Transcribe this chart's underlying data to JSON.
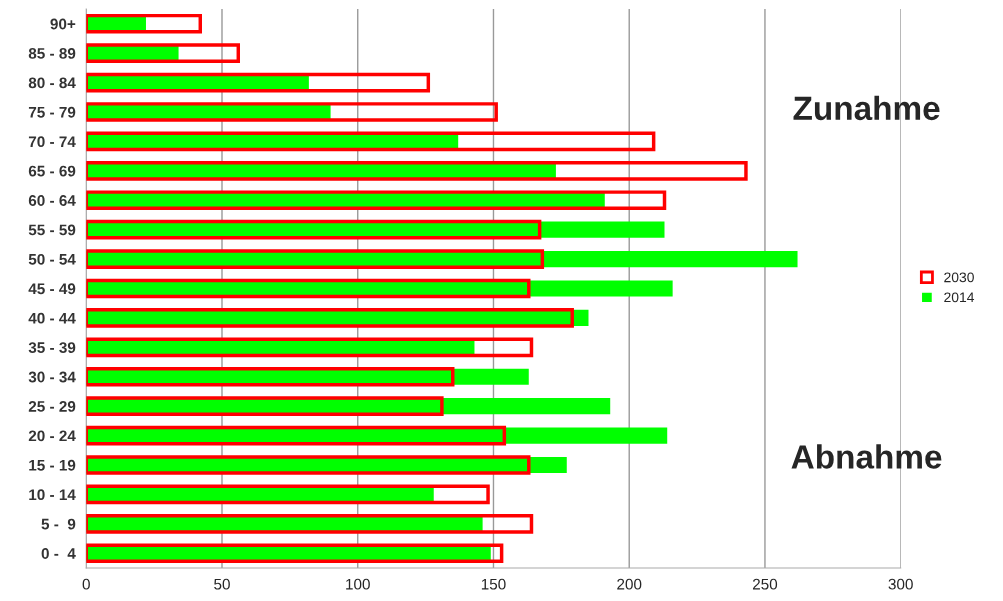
{
  "chart_data": {
    "type": "bar",
    "orientation": "horizontal",
    "categories": [
      "90+",
      "85 - 89",
      "80 - 84",
      "75 - 79",
      "70 - 74",
      "65 - 69",
      "60 - 64",
      "55 - 59",
      "50 - 54",
      "45 - 49",
      "40 - 44",
      "35 - 39",
      "30 - 34",
      "25 - 29",
      "20 - 24",
      "15 - 19",
      "10 - 14",
      "5 -  9",
      "0 -  4"
    ],
    "series": [
      {
        "name": "2030",
        "color": "#ff0000",
        "values": [
          42,
          56,
          126,
          151,
          209,
          243,
          213,
          167,
          168,
          163,
          179,
          164,
          135,
          131,
          154,
          163,
          148,
          164,
          153
        ]
      },
      {
        "name": "2014",
        "color": "#00ff00",
        "values": [
          22,
          34,
          82,
          90,
          137,
          173,
          191,
          213,
          262,
          216,
          185,
          143,
          163,
          193,
          214,
          177,
          128,
          146,
          149
        ]
      }
    ],
    "xlim": [
      0,
      300
    ],
    "xticks": [
      0,
      50,
      100,
      150,
      200,
      250,
      300
    ],
    "grid": "x",
    "legend": "right",
    "annotations": [
      "Zunahme",
      "Abnahme"
    ]
  }
}
